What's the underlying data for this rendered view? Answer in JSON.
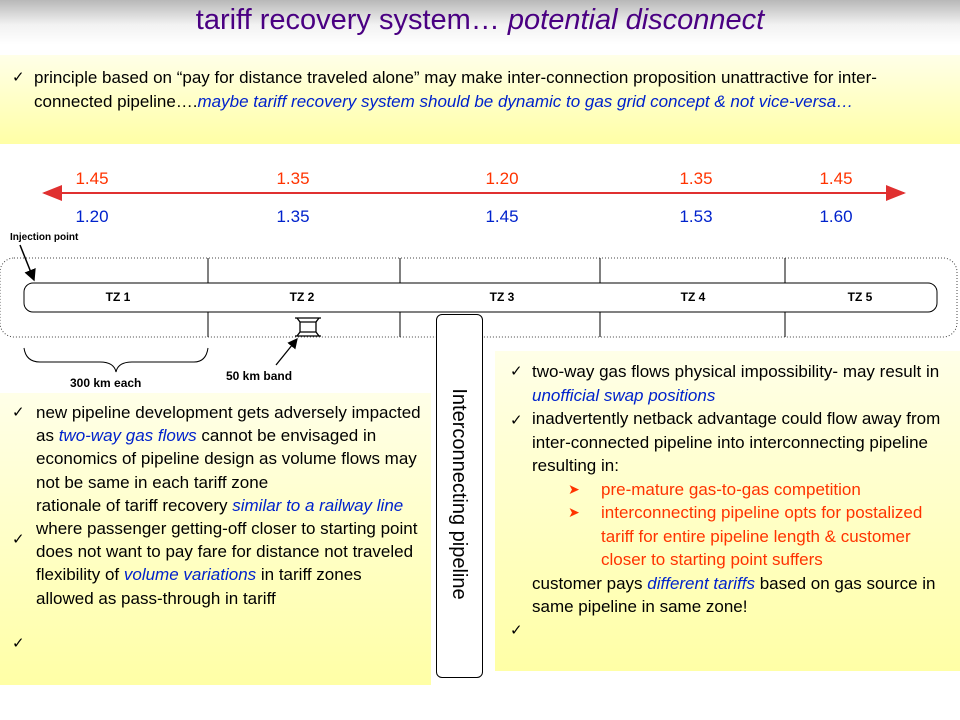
{
  "title": {
    "main": "tariff recovery system…",
    "emph": "potential disconnect"
  },
  "top_bullet": {
    "text": "principle based on “pay for distance traveled alone” may make inter-connection proposition unattractive for inter-connected pipeline….",
    "emph": "maybe tariff recovery system should be dynamic to gas grid concept & not vice-versa…"
  },
  "tariffs_top": [
    "1.45",
    "1.35",
    "1.20",
    "1.35",
    "1.45"
  ],
  "tariffs_bottom": [
    "1.20",
    "1.35",
    "1.45",
    "1.53",
    "1.60"
  ],
  "injection_point_label": "Injection point",
  "zones": [
    "TZ 1",
    "TZ 2",
    "TZ 3",
    "TZ 4",
    "TZ 5"
  ],
  "zone_length_label": "300 km each",
  "band_label": "50 km band",
  "interconnecting_label": "Interconnecting pipeline",
  "left_bullets": [
    {
      "pre": "new pipeline development gets adversely impacted as ",
      "emph": "two-way gas flows",
      "post": " cannot be envisaged in economics of pipeline design as volume flows may not be same in each tariff zone"
    },
    {
      "pre": "rationale of tariff recovery ",
      "emph": "similar to a railway line",
      "post": " where passenger getting-off closer to starting point does not want to pay fare for distance not traveled"
    },
    {
      "pre": "flexibility of ",
      "emph": "volume variations",
      "post": " in tariff zones allowed as pass-through in tariff"
    }
  ],
  "right_bullets": [
    {
      "pre": "two-way gas flows physical impossibility- may result in ",
      "emph": "unofficial swap positions",
      "post": ""
    },
    {
      "pre": "inadvertently netback advantage could flow away from inter-connected pipeline into interconnecting pipeline resulting in:",
      "emph": "",
      "post": ""
    }
  ],
  "right_sub_bullets": [
    "pre-mature gas-to-gas competition",
    "interconnecting pipeline opts for postalized tariff for entire pipeline length & customer closer to starting point suffers"
  ],
  "right_last_bullet": {
    "pre": "customer pays ",
    "emph": "different tariffs",
    "post": " based on gas source in same pipeline in same zone!"
  },
  "colors": {
    "title": "#4a0082",
    "emphasis": "#0022cc",
    "tariff": "#ff3300",
    "arrow": "#e03030",
    "box": "#ffffa6"
  }
}
